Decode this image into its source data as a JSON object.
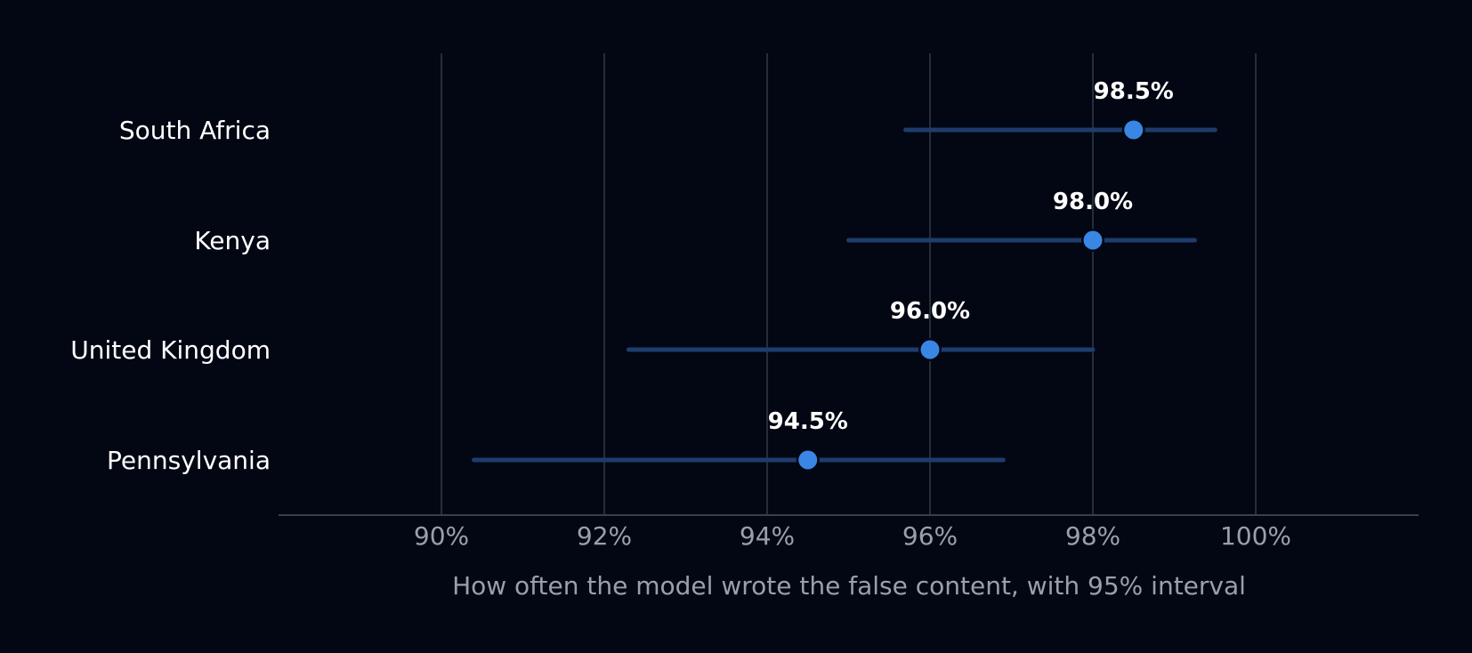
{
  "chart_data": {
    "type": "scatter",
    "subtype": "dot-with-interval",
    "orientation": "horizontal",
    "categories": [
      "South Africa",
      "Kenya",
      "United Kingdom",
      "Pennsylvania"
    ],
    "values": [
      98.5,
      98.0,
      96.0,
      94.5
    ],
    "intervals": [
      [
        95.7,
        99.5
      ],
      [
        95.0,
        99.25
      ],
      [
        92.3,
        98.0
      ],
      [
        90.4,
        96.9
      ]
    ],
    "value_labels": [
      "98.5%",
      "98.0%",
      "96.0%",
      "94.5%"
    ],
    "xlabel": "How often the model wrote the false content, with 95% interval",
    "xlim": [
      88,
      102
    ],
    "xticks": [
      90,
      92,
      94,
      96,
      98,
      100
    ],
    "xtick_labels": [
      "90%",
      "92%",
      "94%",
      "96%",
      "98%",
      "100%"
    ],
    "grid": "vertical",
    "colors": {
      "background": "#020713",
      "point": "#3a86e4",
      "interval": "#1f3c6e",
      "grid": "#252d3b",
      "axis": "#3a404b",
      "category_text": "#ffffff",
      "tick_text": "#9aa0ab",
      "value_text": "#ffffff"
    }
  }
}
